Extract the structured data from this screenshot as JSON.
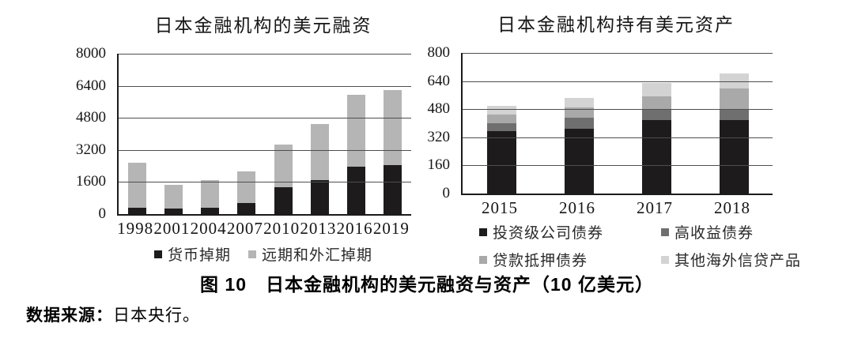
{
  "caption": {
    "text": "图 10　日本金融机构的美元融资与资产（10 亿美元）"
  },
  "source": {
    "label": "数据来源：",
    "value": "日本央行。"
  },
  "colors": {
    "black_series": "#1d1b1b",
    "left_gray": "#b5b5b5",
    "dark_gray": "#6f6f6f",
    "mid_gray": "#a9a9a9",
    "light_gray": "#d3d3d3",
    "axis": "#1b1b1b",
    "gridline": "#4e4e4e"
  },
  "chart_data": [
    {
      "type": "bar",
      "stacked": true,
      "title": "日本金融机构的美元融资",
      "categories": [
        "1998",
        "2001",
        "2004",
        "2007",
        "2010",
        "2013",
        "2016",
        "2019"
      ],
      "series": [
        {
          "name": "货币掉期",
          "color": "#1d1b1b",
          "values": [
            330,
            280,
            310,
            540,
            1340,
            1700,
            2360,
            2460
          ]
        },
        {
          "name": "远期和外汇掉期",
          "color": "#b5b5b5",
          "values": [
            2220,
            1170,
            1390,
            1590,
            2140,
            2800,
            3610,
            3720
          ]
        }
      ],
      "totals": [
        2550,
        1450,
        1700,
        2130,
        3480,
        4500,
        5970,
        6180
      ],
      "xlabel": "",
      "ylabel": "",
      "ylim": [
        0,
        8000
      ],
      "yticks": [
        0,
        1600,
        3200,
        4800,
        6400,
        8000
      ],
      "grid": true,
      "legend_position": "bottom-center"
    },
    {
      "type": "bar",
      "stacked": true,
      "title": "日本金融机构持有美元资产",
      "categories": [
        "2015",
        "2016",
        "2017",
        "2018"
      ],
      "series": [
        {
          "name": "投资级公司债券",
          "color": "#1d1b1b",
          "values": [
            355,
            370,
            420,
            420
          ]
        },
        {
          "name": "高收益债券",
          "color": "#6f6f6f",
          "values": [
            45,
            60,
            55,
            55
          ]
        },
        {
          "name": "贷款抵押债券",
          "color": "#a9a9a9",
          "values": [
            50,
            60,
            80,
            125
          ]
        },
        {
          "name": "其他海外信贷产品",
          "color": "#d3d3d3",
          "values": [
            50,
            55,
            75,
            85
          ]
        }
      ],
      "totals": [
        500,
        545,
        630,
        685
      ],
      "xlabel": "",
      "ylabel": "",
      "ylim": [
        0,
        800
      ],
      "yticks": [
        0,
        160,
        320,
        480,
        640,
        800
      ],
      "grid": true,
      "legend_position": "bottom-left-two-columns"
    }
  ]
}
